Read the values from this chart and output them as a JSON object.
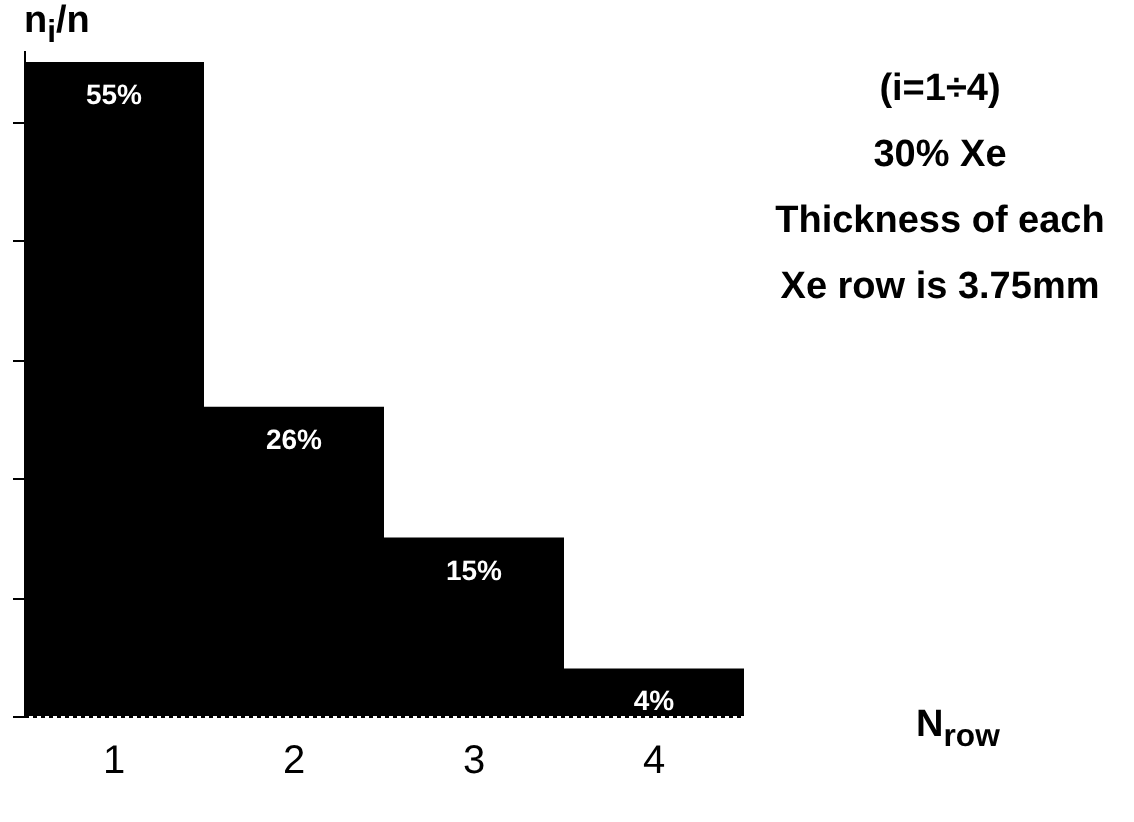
{
  "chart_data": {
    "type": "bar",
    "xlabel": "N$_{row}$",
    "ylabel": "n$_{i}$/n",
    "categories": [
      "1",
      "2",
      "3",
      "4"
    ],
    "values": [
      55,
      26,
      15,
      4
    ],
    "value_labels": [
      "55%",
      "26%",
      "15%",
      "4%"
    ],
    "color": "#000000",
    "ylim": [
      0,
      56
    ],
    "yticks": [
      {
        "value": 0,
        "label": null
      },
      {
        "value": 10,
        "label": null
      },
      {
        "value": 20,
        "label": null
      },
      {
        "value": 30,
        "label": null
      },
      {
        "value": 40,
        "label": null
      },
      {
        "value": 50,
        "label": null
      }
    ],
    "tick_labels": "x",
    "annotations": [
      "(i=1÷4)",
      "30% Xe",
      "Thickness of each",
      "Xe row is 3.75mm"
    ]
  }
}
